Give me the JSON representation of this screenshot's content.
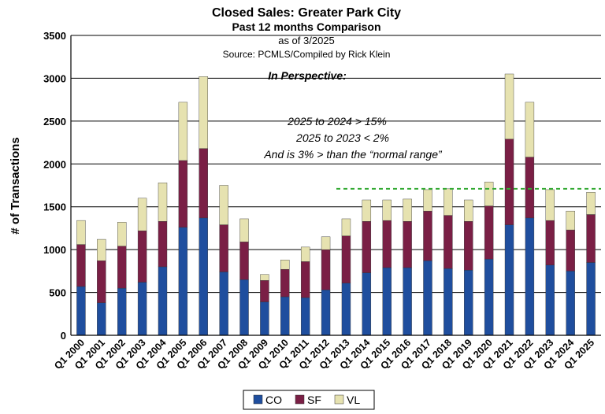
{
  "chart_data": {
    "type": "bar",
    "stacked": true,
    "title": "Closed Sales: Greater Park City",
    "subtitle": "Past 12 months Comparison",
    "date_note": "as of 3/2025",
    "source": "Source: PCMLS/Compiled by Rick Klein",
    "ylabel": "# of Transactions",
    "xlabel": "",
    "ylim": [
      0,
      3500
    ],
    "yticks": [
      0,
      500,
      1000,
      1500,
      2000,
      2500,
      3000,
      3500
    ],
    "grid": true,
    "legend": "bottom",
    "categories": [
      "Q1 2000",
      "Q1 2001",
      "Q1 2002",
      "Q1 2003",
      "Q1 2004",
      "Q1 2005",
      "Q1 2006",
      "Q1 2007",
      "Q1 2008",
      "Q1 2009",
      "Q1 2010",
      "Q1 2011",
      "Q1 2012",
      "Q1 2013",
      "Q1 2014",
      "Q1 2015",
      "Q1 2016",
      "Q1 2017",
      "Q1 2018",
      "Q1 2019",
      "Q1 2020",
      "Q1 2021",
      "Q1 2022",
      "Q1 2023",
      "Q1 2024",
      "Q1 2025"
    ],
    "series": [
      {
        "name": "CO",
        "color": "#1f4e9e",
        "values": [
          570,
          380,
          550,
          620,
          800,
          1260,
          1370,
          740,
          650,
          390,
          450,
          440,
          530,
          610,
          730,
          790,
          790,
          870,
          780,
          760,
          890,
          1290,
          1370,
          820,
          750,
          850
        ]
      },
      {
        "name": "SF",
        "color": "#7a1f45",
        "values": [
          490,
          490,
          490,
          600,
          530,
          780,
          810,
          550,
          440,
          250,
          320,
          420,
          470,
          550,
          600,
          550,
          540,
          580,
          620,
          570,
          620,
          1000,
          710,
          520,
          480,
          560
        ]
      },
      {
        "name": "VL",
        "color": "#e6e2b0",
        "values": [
          280,
          250,
          280,
          380,
          450,
          680,
          840,
          460,
          270,
          70,
          110,
          170,
          150,
          200,
          250,
          240,
          260,
          250,
          310,
          250,
          280,
          760,
          640,
          360,
          220,
          260
        ]
      }
    ],
    "reference_line": {
      "value": 1710,
      "color": "#33aa33",
      "style": "dashed"
    },
    "annotations": {
      "heading": "In Perspective:",
      "lines": [
        "2025  to 2024 > 15%",
        "2025 to  2023 < 2%",
        "And is 3% > than the “normal range”"
      ]
    }
  }
}
